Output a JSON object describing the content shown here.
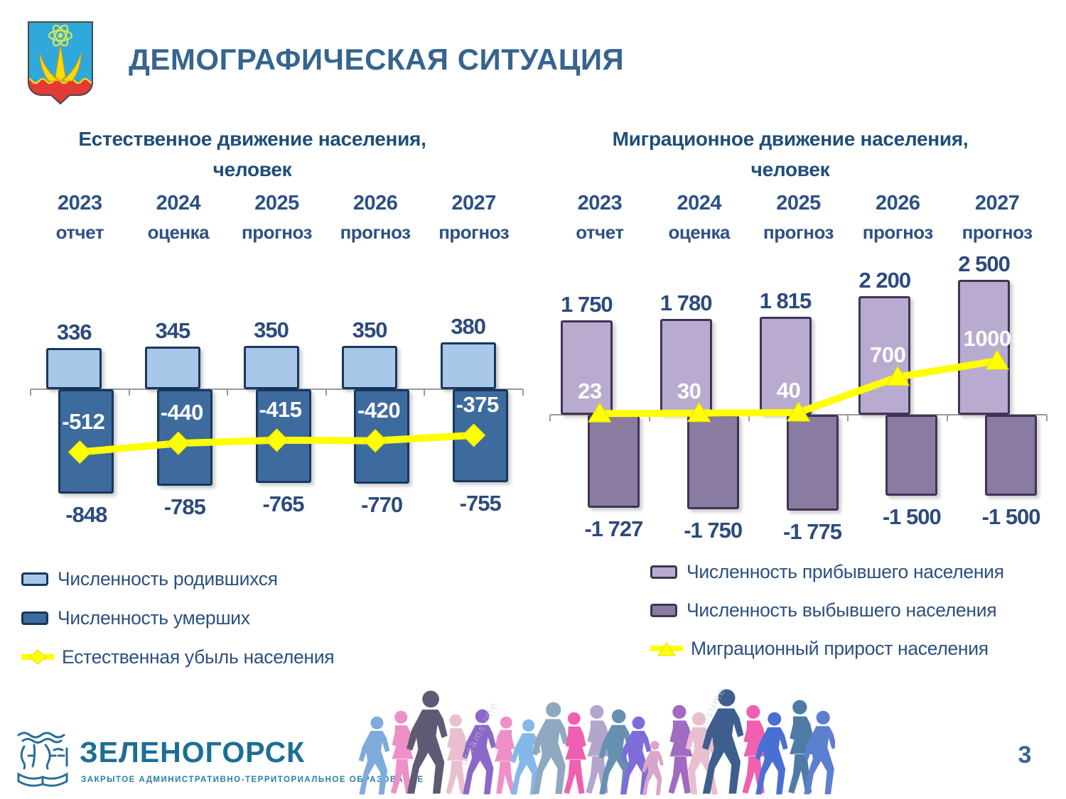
{
  "slide": {
    "title": "ДЕМОГРАФИЧЕСКАЯ СИТУАЦИЯ",
    "page_number": "3"
  },
  "charts": [
    {
      "title_line1": "Естественное движение населения,",
      "title_line2": "человек",
      "years": [
        [
          "2023",
          "отчет"
        ],
        [
          "2024",
          "оценка"
        ],
        [
          "2025",
          "прогноз"
        ],
        [
          "2026",
          "прогноз"
        ],
        [
          "2027",
          "прогноз"
        ]
      ]
    },
    {
      "title_line1": "Миграционное движение населения,",
      "title_line2": "человек",
      "years": [
        [
          "2023",
          "отчет"
        ],
        [
          "2024",
          "оценка"
        ],
        [
          "2025",
          "прогноз"
        ],
        [
          "2026",
          "прогноз"
        ],
        [
          "2027",
          "прогноз"
        ]
      ]
    }
  ],
  "chart_data": [
    {
      "type": "bar",
      "title": "Естественное движение населения, человек",
      "categories": [
        "2023 отчет",
        "2024 оценка",
        "2025 прогноз",
        "2026 прогноз",
        "2027 прогноз"
      ],
      "series": [
        {
          "name": "Численность родившихся",
          "kind": "bar",
          "color": "#A9C7E8",
          "border": "#17375E",
          "values": [
            336,
            345,
            350,
            350,
            380
          ],
          "labels": [
            "336",
            "345",
            "350",
            "350",
            "380"
          ]
        },
        {
          "name": "Численность умерших",
          "kind": "bar",
          "color": "#3D6B9E",
          "border": "#17375E",
          "values": [
            -848,
            -785,
            -765,
            -770,
            -755
          ],
          "labels": [
            "-848",
            "-785",
            "-765",
            "-770",
            "-755"
          ]
        },
        {
          "name": "Естественная убыль населения",
          "kind": "line",
          "marker": "diamond",
          "color": "#FFFF00",
          "values": [
            -512,
            -440,
            -415,
            -420,
            -375
          ],
          "labels": [
            "-512",
            "-440",
            "-415",
            "-420",
            "-375"
          ]
        }
      ],
      "ylim": [
        -900,
        430
      ],
      "grid": false,
      "legend_position": "bottom-left",
      "value_label_color": "#2C4A7C",
      "inline_label_color": "#FFFFFF",
      "axis_color": "#999999"
    },
    {
      "type": "bar",
      "title": "Миграционное движение населения, человек",
      "categories": [
        "2023 отчет",
        "2024 оценка",
        "2025 прогноз",
        "2026 прогноз",
        "2027 прогноз"
      ],
      "series": [
        {
          "name": "Численность прибывшего населения",
          "kind": "bar",
          "color": "#B9ABD0",
          "border": "#3F3456",
          "values": [
            1750,
            1780,
            1815,
            2200,
            2500
          ],
          "labels": [
            "1 750",
            "1 780",
            "1 815",
            "2 200",
            "2 500"
          ]
        },
        {
          "name": "Численность выбывшего населения",
          "kind": "bar",
          "color": "#8A7BA1",
          "border": "#3F3456",
          "values": [
            -1727,
            -1750,
            -1775,
            -1500,
            -1500
          ],
          "labels": [
            "-1 727",
            "-1 750",
            "-1 775",
            "-1 500",
            "-1 500"
          ]
        },
        {
          "name": "Миграционный прирост населения",
          "kind": "line",
          "marker": "triangle",
          "color": "#FFFF00",
          "values": [
            23,
            30,
            40,
            700,
            1000
          ],
          "labels": [
            "23",
            "30",
            "40",
            "700",
            "1000"
          ]
        }
      ],
      "ylim": [
        -2000,
        2600
      ],
      "grid": false,
      "legend_position": "bottom-right",
      "value_label_color": "#2C4A7C",
      "inline_label_color": "#FFFFFF",
      "axis_color": "#999999"
    }
  ],
  "footer": {
    "logo_title": "ЗЕЛЕНОГОРСК",
    "logo_subtitle": "ЗАКРЫТОЕ АДМИНИСТРАТИВНО-ТЕРРИТОРИАЛЬНОЕ ОБРАЗОВАНИЕ",
    "watermark": "dreamstime",
    "people_palette": [
      "#7FABDC",
      "#8A68C8",
      "#5E5A74",
      "#EE8FC8",
      "#8FA8C0",
      "#7E6CD8",
      "#E9BECF",
      "#4A6FD4",
      "#85B8E8",
      "#F060B0",
      "#6690B0",
      "#B3A6CC",
      "#4E7BA6",
      "#D9A6C9",
      "#5C7FCE",
      "#A06BC0",
      "#3E5F8E",
      "#7A9FD4"
    ]
  }
}
